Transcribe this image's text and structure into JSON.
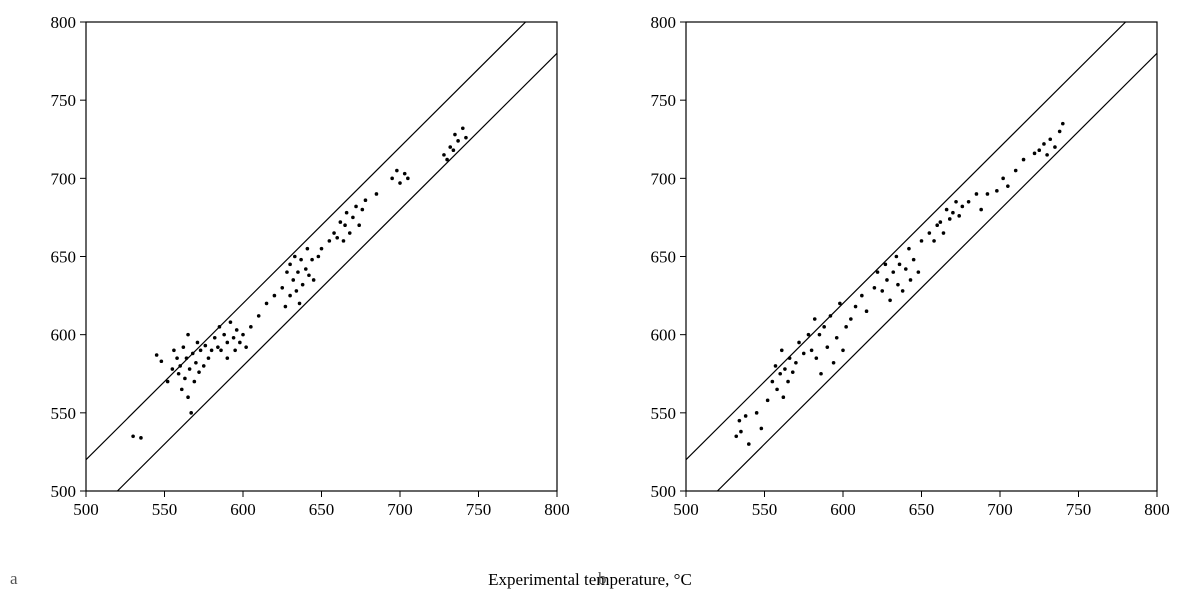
{
  "chart_data": [
    {
      "type": "scatter",
      "panel_label": "a",
      "xlabel": "Experimental temperature, °C",
      "xlim": [
        500,
        800
      ],
      "ylim": [
        500,
        800
      ],
      "xticks": [
        500,
        550,
        600,
        650,
        700,
        750,
        800
      ],
      "yticks": [
        500,
        550,
        600,
        650,
        700,
        750,
        800
      ],
      "color": "#000000",
      "bounds": [
        {
          "x": [
            500,
            780
          ],
          "y": [
            520,
            800
          ]
        },
        {
          "x": [
            520,
            800
          ],
          "y": [
            500,
            780
          ]
        }
      ],
      "x": [
        530,
        535,
        545,
        548,
        552,
        555,
        556,
        558,
        559,
        560,
        561,
        562,
        563,
        564,
        565,
        565,
        566,
        567,
        568,
        569,
        570,
        571,
        572,
        573,
        575,
        576,
        578,
        580,
        582,
        584,
        585,
        586,
        588,
        590,
        590,
        592,
        594,
        595,
        596,
        598,
        600,
        602,
        605,
        610,
        615,
        620,
        625,
        627,
        628,
        630,
        630,
        632,
        633,
        634,
        635,
        636,
        637,
        638,
        640,
        641,
        642,
        644,
        645,
        648,
        650,
        655,
        658,
        660,
        662,
        664,
        665,
        666,
        668,
        670,
        672,
        674,
        676,
        678,
        685,
        695,
        698,
        700,
        703,
        705,
        728,
        730,
        732,
        734,
        735,
        737,
        740,
        742
      ],
      "y": [
        535,
        534,
        587,
        583,
        570,
        578,
        590,
        585,
        575,
        580,
        565,
        592,
        572,
        585,
        560,
        600,
        578,
        550,
        588,
        570,
        582,
        595,
        576,
        590,
        580,
        593,
        585,
        590,
        598,
        592,
        605,
        590,
        600,
        595,
        585,
        608,
        598,
        590,
        603,
        595,
        600,
        592,
        605,
        612,
        620,
        625,
        630,
        618,
        640,
        625,
        645,
        635,
        650,
        628,
        640,
        620,
        648,
        632,
        642,
        655,
        638,
        648,
        635,
        650,
        655,
        660,
        665,
        662,
        672,
        660,
        670,
        678,
        665,
        675,
        682,
        670,
        680,
        686,
        690,
        700,
        705,
        697,
        703,
        700,
        715,
        712,
        720,
        718,
        728,
        724,
        732,
        726
      ]
    },
    {
      "type": "scatter",
      "panel_label": "b",
      "xlim": [
        500,
        800
      ],
      "ylim": [
        500,
        800
      ],
      "xticks": [
        500,
        550,
        600,
        650,
        700,
        750,
        800
      ],
      "yticks": [
        500,
        550,
        600,
        650,
        700,
        750,
        800
      ],
      "color": "#000000",
      "bounds": [
        {
          "x": [
            500,
            780
          ],
          "y": [
            520,
            800
          ]
        },
        {
          "x": [
            520,
            800
          ],
          "y": [
            500,
            780
          ]
        }
      ],
      "x": [
        532,
        535,
        534,
        538,
        540,
        545,
        548,
        552,
        555,
        557,
        558,
        560,
        561,
        562,
        563,
        565,
        566,
        568,
        570,
        572,
        575,
        578,
        580,
        582,
        583,
        585,
        586,
        588,
        590,
        592,
        594,
        596,
        598,
        600,
        602,
        605,
        608,
        612,
        615,
        620,
        622,
        625,
        627,
        628,
        630,
        632,
        634,
        635,
        636,
        638,
        640,
        642,
        643,
        645,
        648,
        650,
        655,
        658,
        660,
        662,
        664,
        666,
        668,
        670,
        672,
        674,
        676,
        680,
        685,
        688,
        692,
        698,
        702,
        705,
        710,
        715,
        722,
        725,
        728,
        730,
        732,
        735,
        738,
        740
      ],
      "y": [
        535,
        538,
        545,
        548,
        530,
        550,
        540,
        558,
        570,
        580,
        565,
        575,
        590,
        560,
        578,
        570,
        585,
        576,
        582,
        595,
        588,
        600,
        590,
        610,
        585,
        600,
        575,
        605,
        592,
        612,
        582,
        598,
        620,
        590,
        605,
        610,
        618,
        625,
        615,
        630,
        640,
        628,
        645,
        635,
        622,
        640,
        650,
        632,
        645,
        628,
        642,
        655,
        635,
        648,
        640,
        660,
        665,
        660,
        670,
        672,
        665,
        680,
        674,
        678,
        685,
        676,
        682,
        685,
        690,
        680,
        690,
        692,
        700,
        695,
        705,
        712,
        716,
        718,
        722,
        715,
        725,
        720,
        730,
        735
      ]
    }
  ]
}
